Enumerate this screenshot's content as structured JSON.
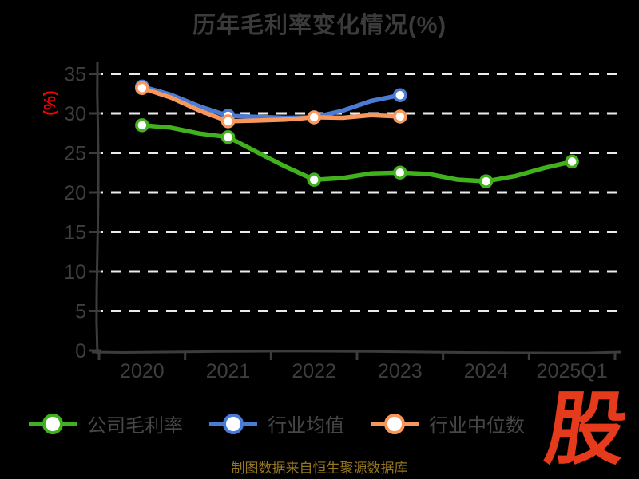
{
  "chart_data": {
    "type": "line",
    "title": "历年毛利率变化情况(%)",
    "ylabel": "(%)",
    "xlabel": "",
    "categories": [
      "2020",
      "2021",
      "2022",
      "2023",
      "2024",
      "2025Q1"
    ],
    "series": [
      {
        "name": "公司毛利率",
        "color": "#41b11e",
        "values": [
          28.5,
          27.0,
          21.6,
          22.5,
          21.4,
          23.9
        ]
      },
      {
        "name": "行业均值",
        "color": "#4a7cd6",
        "values": [
          33.4,
          29.7,
          29.5,
          32.3,
          null,
          null
        ]
      },
      {
        "name": "行业中位数",
        "color": "#f7975c",
        "values": [
          33.2,
          29.0,
          29.5,
          29.6,
          null,
          null
        ]
      }
    ],
    "ylim": [
      0,
      35
    ],
    "ytick_step": 5,
    "yticks": [
      0,
      5,
      10,
      15,
      20,
      25,
      30,
      35
    ],
    "grid": "horizontal-dashed",
    "legend_position": "bottom",
    "style": "xkcd-sketch-on-black",
    "marker": "circle-white-fill"
  },
  "colors": {
    "background": "#000000",
    "gridline": "#ebebeb",
    "axis": "#3c3c3c",
    "tick_label": "#3e3e3e",
    "title": "#3b3b3b",
    "ylabel_red": "#ff0000",
    "legend_text": "#464646",
    "footer_text": "#96761f",
    "logo_red": "#e53a1c",
    "marker_fill": "#ffffff"
  },
  "footer": {
    "text": "制图数据来自恒生聚源数据库"
  },
  "logo": {
    "text": "股"
  }
}
